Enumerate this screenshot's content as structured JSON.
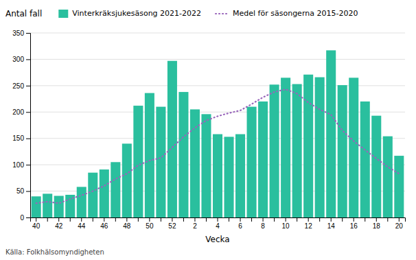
{
  "chart_data": {
    "type": "bar",
    "categories": [
      "40",
      null,
      "42",
      null,
      "44",
      null,
      "46",
      null,
      "48",
      null,
      "50",
      null,
      "52",
      null,
      "2",
      null,
      "4",
      null,
      "6",
      null,
      "8",
      null,
      "10",
      null,
      "12",
      null,
      "14",
      null,
      "16",
      null,
      "18",
      null,
      "20"
    ],
    "series": [
      {
        "name": "Vinterkräksjukesäsong 2021-2022",
        "type": "bar",
        "color": "#2abf9e",
        "values": [
          40,
          45,
          41,
          43,
          58,
          85,
          91,
          105,
          140,
          212,
          236,
          210,
          297,
          238,
          205,
          196,
          158,
          153,
          158,
          210,
          220,
          252,
          265,
          253,
          271,
          266,
          317,
          251,
          265,
          220,
          193,
          154,
          117
        ]
      },
      {
        "name": "Medel för säsongerna 2015-2020",
        "type": "line",
        "color": "#9966bb",
        "line_style": "dotted",
        "values": [
          27,
          30,
          27,
          35,
          42,
          50,
          60,
          73,
          83,
          99,
          108,
          113,
          133,
          153,
          170,
          184,
          192,
          198,
          203,
          215,
          228,
          238,
          243,
          235,
          218,
          205,
          195,
          165,
          145,
          128,
          112,
          96,
          83
        ]
      }
    ],
    "xlabel": "Vecka",
    "ylabel": "Antal fall",
    "annotations": [
      "Källa: Folkhälsomyndigheten"
    ],
    "ylim": [
      0,
      350
    ],
    "yticks": [
      0,
      50,
      100,
      150,
      200,
      250,
      300,
      350
    ],
    "grid": true,
    "legend": "top"
  }
}
